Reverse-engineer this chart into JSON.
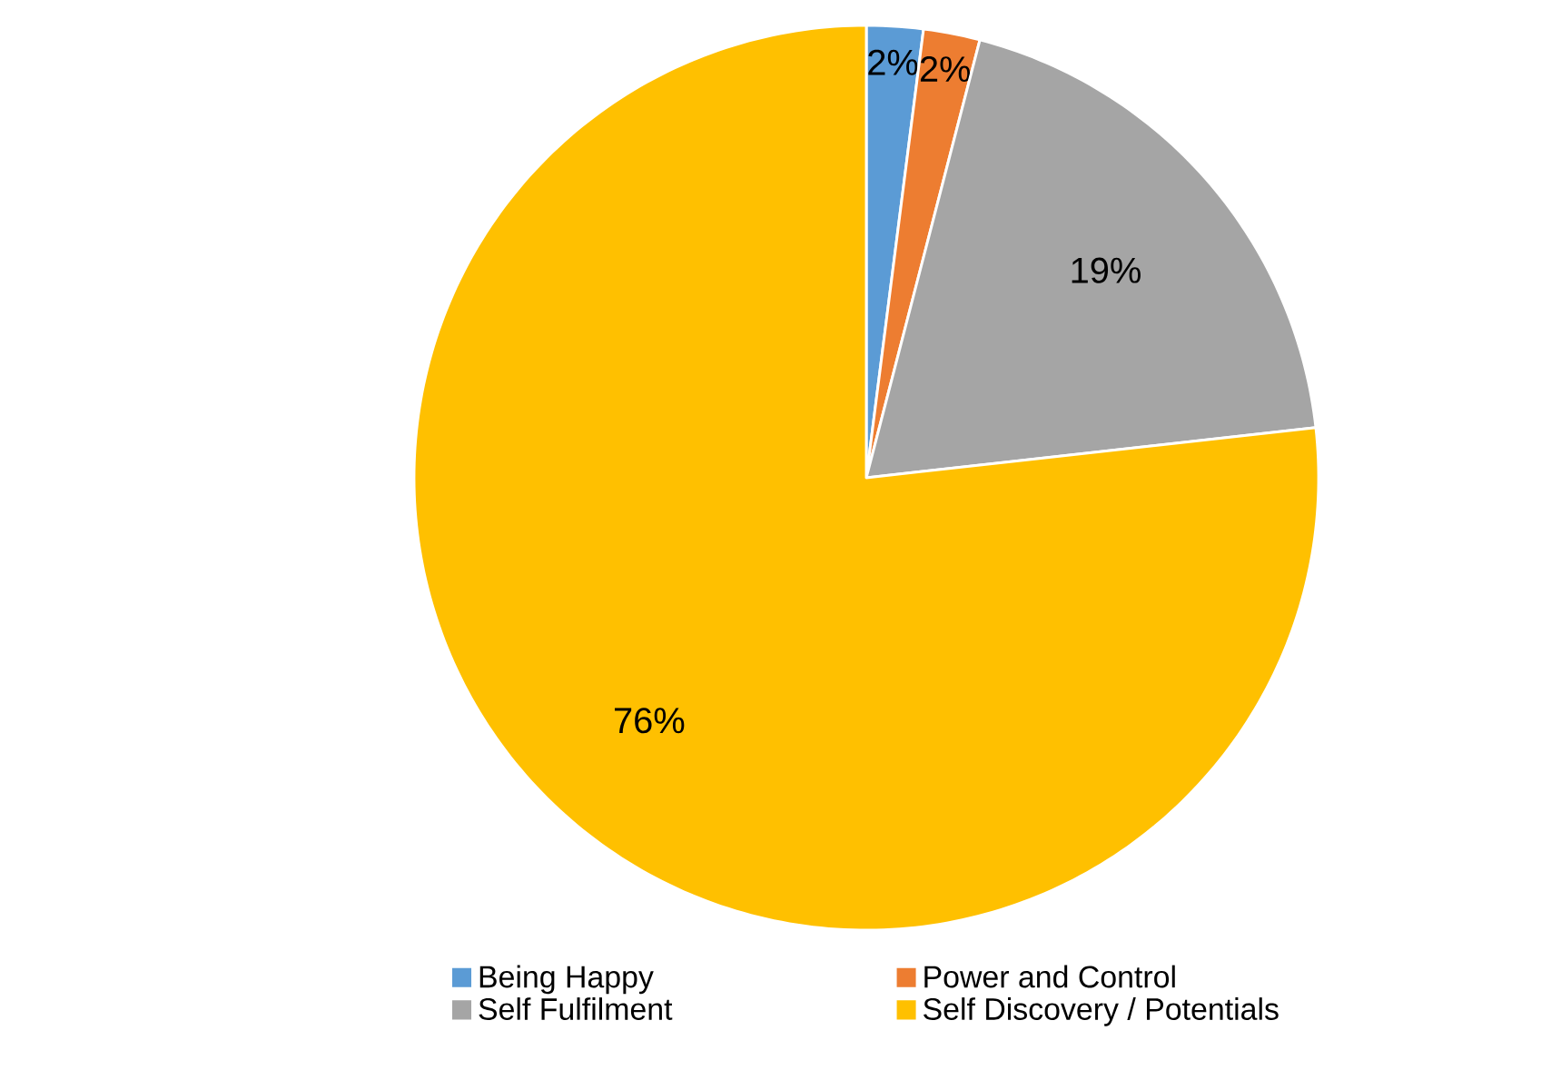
{
  "chart_data": {
    "type": "pie",
    "categories": [
      "Being Happy",
      "Power and Control",
      "Self Fulfilment",
      "Self Discovery / Potentials"
    ],
    "values": [
      2,
      2,
      19,
      76
    ],
    "value_labels": [
      "2%",
      "2%",
      "19%",
      "76%"
    ],
    "colors": [
      "#5b9bd5",
      "#ed7d31",
      "#a5a5a5",
      "#ffc000"
    ],
    "legend": "bottom"
  }
}
